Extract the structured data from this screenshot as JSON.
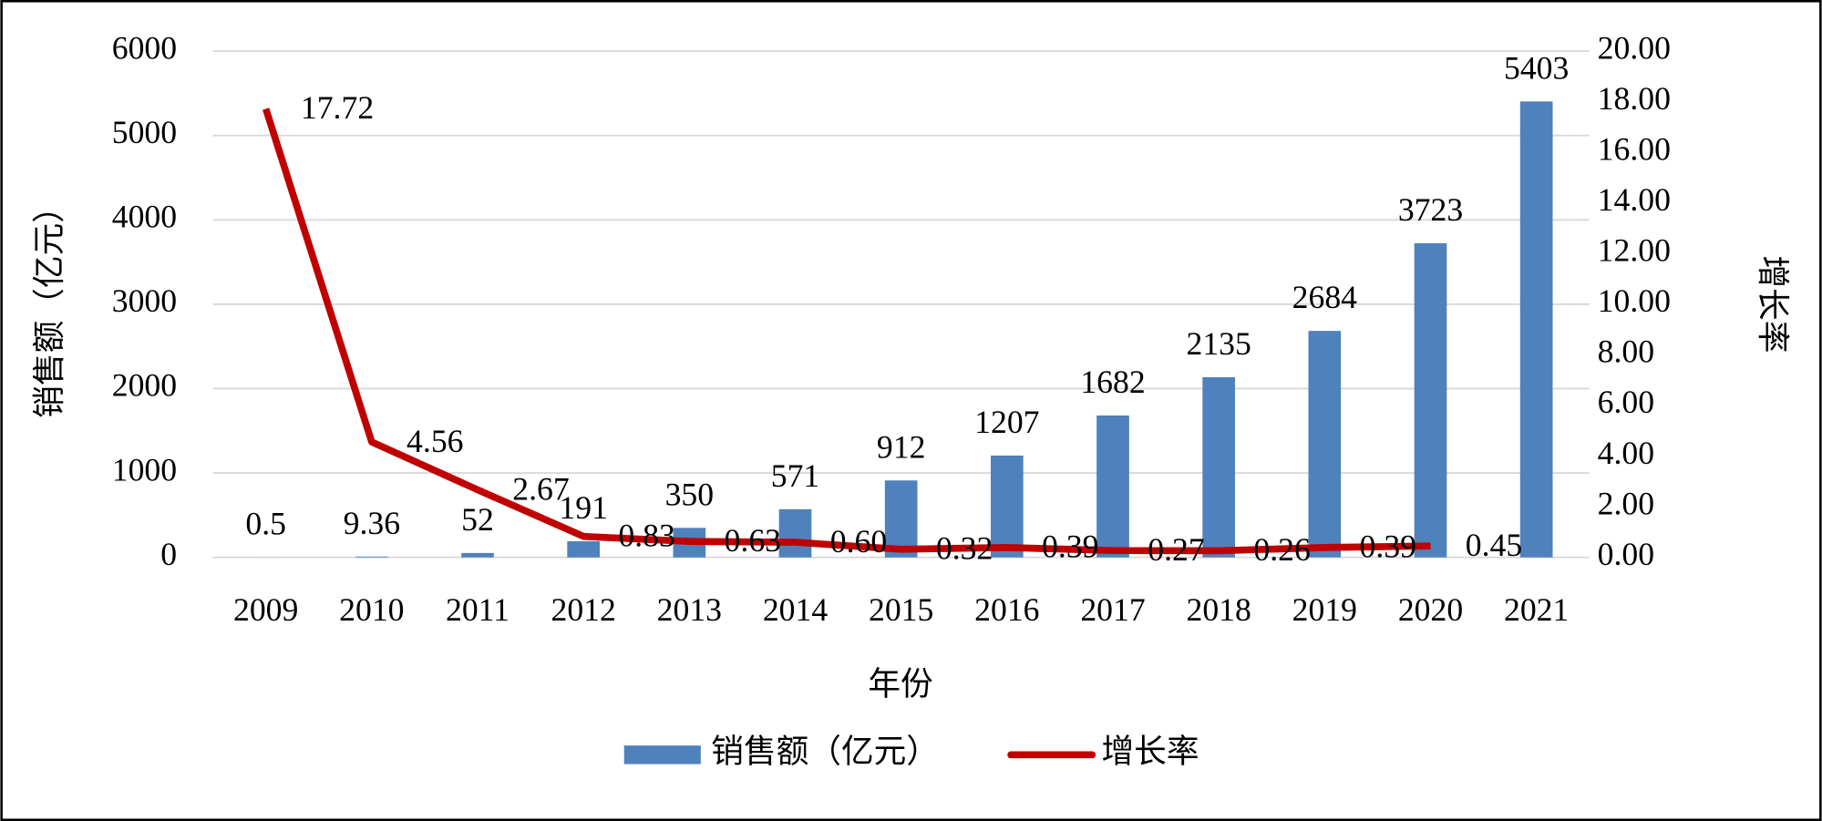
{
  "chart_data": {
    "type": "bar-line",
    "x_label": "年份",
    "y_label": "销售额（亿元）",
    "y2_label": "增长率",
    "categories": [
      "2009",
      "2010",
      "2011",
      "2012",
      "2013",
      "2014",
      "2015",
      "2016",
      "2017",
      "2018",
      "2019",
      "2020",
      "2021"
    ],
    "series": [
      {
        "name": "销售额（亿元）",
        "type": "bar",
        "color": "#4f81bd",
        "values": [
          0.5,
          9.36,
          52,
          191,
          350,
          571,
          912,
          1207,
          1682,
          2135,
          2684,
          3723,
          5403
        ]
      },
      {
        "name": "增长率",
        "type": "line",
        "axis": "y2",
        "color": "#c00000",
        "values": [
          17.72,
          4.56,
          2.67,
          0.83,
          0.63,
          0.6,
          0.32,
          0.39,
          0.27,
          0.26,
          0.39,
          0.45,
          null
        ],
        "value_labels": [
          "17.72",
          "4.56",
          "2.67",
          "0.83",
          "0.63",
          "0.60",
          "0.32",
          "0.39",
          "0.27",
          "0.26",
          "0.39",
          "0.45",
          null
        ]
      }
    ],
    "ylim": [
      0,
      6000
    ],
    "yticks": [
      0,
      1000,
      2000,
      3000,
      4000,
      5000,
      6000
    ],
    "y2lim": [
      0,
      20
    ],
    "y2ticks": [
      {
        "value": 0,
        "label": "0.00"
      },
      {
        "value": 2,
        "label": "2.00"
      },
      {
        "value": 4,
        "label": "4.00"
      },
      {
        "value": 6,
        "label": "6.00"
      },
      {
        "value": 8,
        "label": "8.00"
      },
      {
        "value": 10,
        "label": "10.00"
      },
      {
        "value": 12,
        "label": "12.00"
      },
      {
        "value": 14,
        "label": "14.00"
      },
      {
        "value": 16,
        "label": "16.00"
      },
      {
        "value": 18,
        "label": "18.00"
      },
      {
        "value": 20,
        "label": "20.00"
      }
    ],
    "grid": true,
    "legend": "bottom"
  }
}
